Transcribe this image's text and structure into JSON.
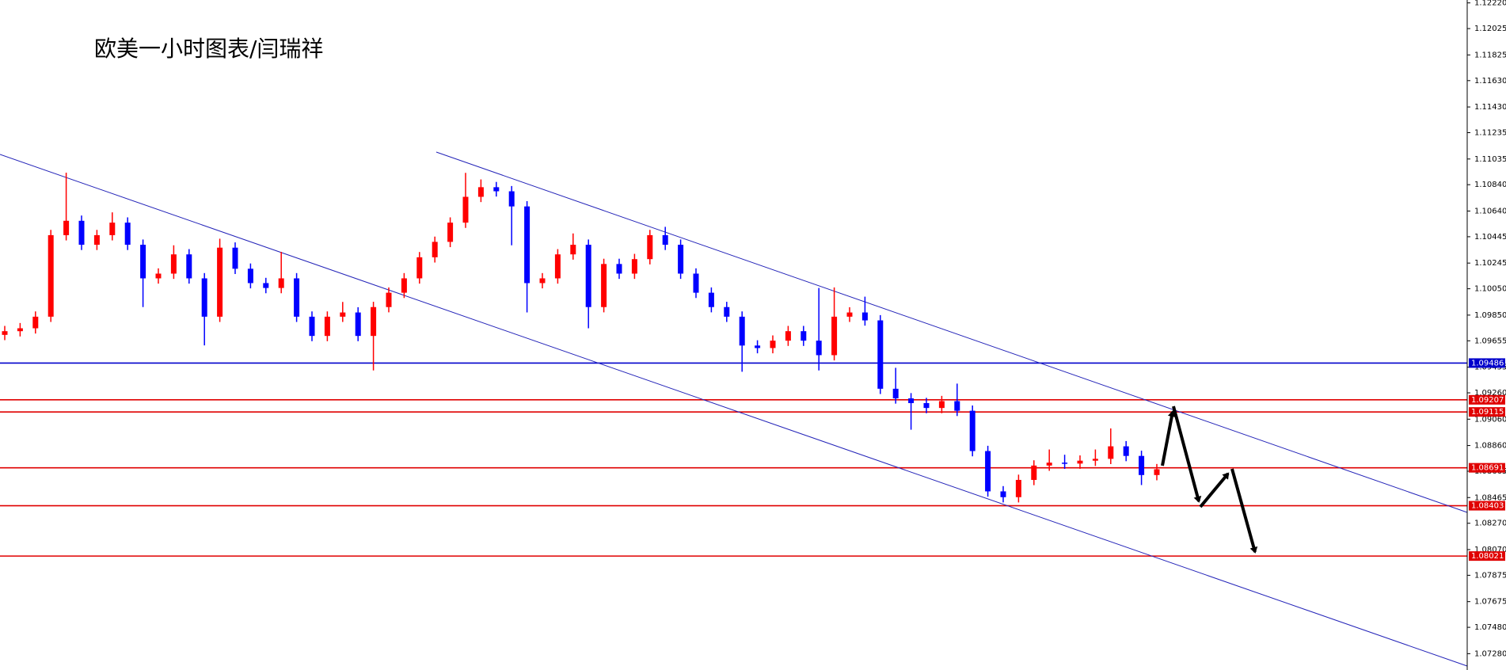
{
  "chart_data": {
    "type": "candlestick",
    "title": "欧美一小时图表/闫瑞祥",
    "up_color": "#ff0000",
    "down_color": "#0000ff",
    "ylim": [
      1.07156,
      1.12242
    ],
    "yticks": [
      {
        "value": 1.1222,
        "label": "1.12220"
      },
      {
        "value": 1.12025,
        "label": "1.12025"
      },
      {
        "value": 1.11825,
        "label": "1.11825"
      },
      {
        "value": 1.1163,
        "label": "1.11630"
      },
      {
        "value": 1.1143,
        "label": "1.11430"
      },
      {
        "value": 1.11235,
        "label": "1.11235"
      },
      {
        "value": 1.11035,
        "label": "1.11035"
      },
      {
        "value": 1.1084,
        "label": "1.10840"
      },
      {
        "value": 1.1064,
        "label": "1.10640"
      },
      {
        "value": 1.10445,
        "label": "1.10445"
      },
      {
        "value": 1.10245,
        "label": "1.10245"
      },
      {
        "value": 1.1005,
        "label": "1.10050"
      },
      {
        "value": 1.0985,
        "label": "1.09850"
      },
      {
        "value": 1.09655,
        "label": "1.09655"
      },
      {
        "value": 1.09455,
        "label": "1.09455"
      },
      {
        "value": 1.0926,
        "label": "1.09260"
      },
      {
        "value": 1.0906,
        "label": "1.09060"
      },
      {
        "value": 1.0886,
        "label": "1.08860"
      },
      {
        "value": 1.08665,
        "label": "1.08665"
      },
      {
        "value": 1.08465,
        "label": "1.08465"
      },
      {
        "value": 1.0827,
        "label": "1.08270"
      },
      {
        "value": 1.0807,
        "label": "1.08070"
      },
      {
        "value": 1.07875,
        "label": "1.07875"
      },
      {
        "value": 1.07675,
        "label": "1.07675"
      },
      {
        "value": 1.0748,
        "label": "1.07480"
      },
      {
        "value": 1.0728,
        "label": "1.07280"
      }
    ],
    "levels": [
      {
        "value": 1.09486,
        "color": "#0000cc"
      },
      {
        "value": 1.09207,
        "color": "#e00000"
      },
      {
        "value": 1.09115,
        "color": "#e00000"
      },
      {
        "value": 1.08691,
        "color": "#e00000"
      },
      {
        "value": 1.08403,
        "color": "#e00000"
      },
      {
        "value": 1.08021,
        "color": "#e00000"
      }
    ],
    "ohlc": [
      [
        1.097,
        1.09768,
        1.0966,
        1.09728
      ],
      [
        1.09728,
        1.0979,
        1.09688,
        1.0975
      ],
      [
        1.0975,
        1.09878,
        1.0971,
        1.09838
      ],
      [
        1.09838,
        1.10497,
        1.09798,
        1.10457
      ],
      [
        1.10457,
        1.10931,
        1.10417,
        1.10566
      ],
      [
        1.10566,
        1.10606,
        1.10344,
        1.10384
      ],
      [
        1.10384,
        1.10497,
        1.10344,
        1.10457
      ],
      [
        1.10457,
        1.1063,
        1.10417,
        1.10552
      ],
      [
        1.10552,
        1.10592,
        1.10344,
        1.10384
      ],
      [
        1.10384,
        1.10424,
        1.09911,
        1.10129
      ],
      [
        1.10129,
        1.10205,
        1.10089,
        1.10165
      ],
      [
        1.10165,
        1.1038,
        1.10125,
        1.10311
      ],
      [
        1.10311,
        1.10351,
        1.10089,
        1.10129
      ],
      [
        1.10129,
        1.10169,
        1.0962,
        1.09838
      ],
      [
        1.09838,
        1.1043,
        1.09798,
        1.10362
      ],
      [
        1.10362,
        1.10402,
        1.10162,
        1.10202
      ],
      [
        1.10202,
        1.10242,
        1.10053,
        1.10093
      ],
      [
        1.10093,
        1.10133,
        1.10016,
        1.10056
      ],
      [
        1.10056,
        1.1033,
        1.10016,
        1.10129
      ],
      [
        1.10129,
        1.10169,
        1.09798,
        1.09838
      ],
      [
        1.09838,
        1.09878,
        1.09652,
        1.09692
      ],
      [
        1.09692,
        1.09878,
        1.09652,
        1.09838
      ],
      [
        1.09838,
        1.0995,
        1.09798,
        1.0987
      ],
      [
        1.0987,
        1.0991,
        1.09652,
        1.09692
      ],
      [
        1.09692,
        1.09951,
        1.0943,
        1.09911
      ],
      [
        1.09911,
        1.1006,
        1.09871,
        1.1002
      ],
      [
        1.1002,
        1.10169,
        1.0998,
        1.10129
      ],
      [
        1.10129,
        1.10329,
        1.10089,
        1.10289
      ],
      [
        1.10289,
        1.10446,
        1.10249,
        1.10406
      ],
      [
        1.10406,
        1.10592,
        1.10366,
        1.10552
      ],
      [
        1.10552,
        1.1093,
        1.10512,
        1.10748
      ],
      [
        1.10748,
        1.1088,
        1.10708,
        1.10821
      ],
      [
        1.10821,
        1.10861,
        1.1075,
        1.1079
      ],
      [
        1.1079,
        1.1083,
        1.1038,
        1.10675
      ],
      [
        1.10675,
        1.10715,
        1.0987,
        1.10093
      ],
      [
        1.10093,
        1.10169,
        1.10053,
        1.10129
      ],
      [
        1.10129,
        1.10351,
        1.10089,
        1.10311
      ],
      [
        1.10311,
        1.1047,
        1.10271,
        1.10384
      ],
      [
        1.10384,
        1.10424,
        1.0975,
        1.09911
      ],
      [
        1.09911,
        1.10278,
        1.09871,
        1.10238
      ],
      [
        1.10238,
        1.10278,
        1.10125,
        1.10165
      ],
      [
        1.10165,
        1.10315,
        1.10125,
        1.10275
      ],
      [
        1.10275,
        1.10497,
        1.10235,
        1.10457
      ],
      [
        1.10457,
        1.1052,
        1.10344,
        1.10384
      ],
      [
        1.10384,
        1.10424,
        1.10125,
        1.10165
      ],
      [
        1.10165,
        1.10205,
        1.0998,
        1.1002
      ],
      [
        1.1002,
        1.1006,
        1.09871,
        1.09911
      ],
      [
        1.09911,
        1.09951,
        1.09798,
        1.09838
      ],
      [
        1.09838,
        1.09878,
        1.0942,
        1.09619
      ],
      [
        1.09619,
        1.09659,
        1.0956,
        1.096
      ],
      [
        1.096,
        1.09696,
        1.0956,
        1.09656
      ],
      [
        1.09656,
        1.09768,
        1.09616,
        1.09728
      ],
      [
        1.09728,
        1.09768,
        1.09616,
        1.09656
      ],
      [
        1.09656,
        1.10056,
        1.0943,
        1.09546
      ],
      [
        1.09546,
        1.1006,
        1.09506,
        1.09838
      ],
      [
        1.09838,
        1.0991,
        1.09798,
        1.0987
      ],
      [
        1.0987,
        1.0999,
        1.0977,
        1.0981
      ],
      [
        1.0981,
        1.0985,
        1.09251,
        1.09291
      ],
      [
        1.09291,
        1.0945,
        1.09178,
        1.09218
      ],
      [
        1.09218,
        1.09258,
        1.0898,
        1.09182
      ],
      [
        1.09182,
        1.09222,
        1.09105,
        1.09145
      ],
      [
        1.09145,
        1.09237,
        1.09105,
        1.09197
      ],
      [
        1.09197,
        1.0933,
        1.09084,
        1.09124
      ],
      [
        1.09124,
        1.09164,
        1.08778,
        1.08818
      ],
      [
        1.08818,
        1.08858,
        1.08472,
        1.08512
      ],
      [
        1.08512,
        1.08552,
        1.08428,
        1.08468
      ],
      [
        1.08468,
        1.08639,
        1.08428,
        1.08599
      ],
      [
        1.08599,
        1.08748,
        1.08559,
        1.08708
      ],
      [
        1.08708,
        1.0883,
        1.08668,
        1.0873
      ],
      [
        1.0873,
        1.0879,
        1.08683,
        1.08723
      ],
      [
        1.08723,
        1.08785,
        1.08683,
        1.08745
      ],
      [
        1.08745,
        1.0883,
        1.08705,
        1.08759
      ],
      [
        1.08759,
        1.0899,
        1.08719,
        1.08854
      ],
      [
        1.08854,
        1.08894,
        1.08741,
        1.08781
      ],
      [
        1.08781,
        1.08821,
        1.0856,
        1.08636
      ],
      [
        1.08636,
        1.0872,
        1.08596,
        1.0868
      ]
    ]
  }
}
